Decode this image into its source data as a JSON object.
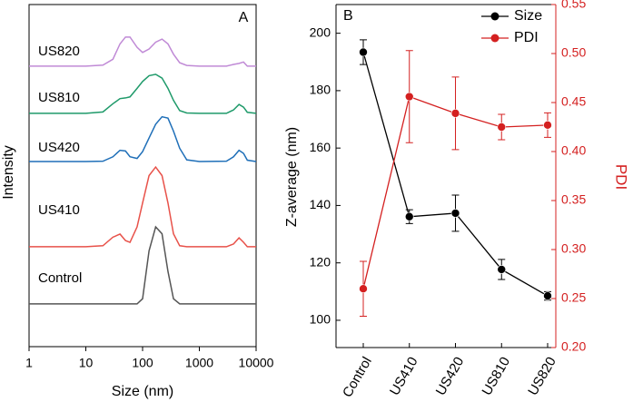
{
  "chart_data": [
    {
      "type": "line",
      "panel_label": "A",
      "x_label": "Size (nm)",
      "y_label": "Intensity",
      "x_log": true,
      "xlim": [
        1,
        10000
      ],
      "xticks": [
        1,
        10,
        100,
        1000,
        10000
      ],
      "ylim": [
        0,
        100
      ],
      "x": [
        1,
        10,
        20,
        30,
        40,
        50,
        60,
        80,
        100,
        130,
        170,
        220,
        280,
        350,
        450,
        600,
        1000,
        3000,
        4000,
        5000,
        6000,
        7000,
        10000
      ],
      "series": [
        {
          "name": "Control",
          "color": "#555555",
          "values": [
            12.5,
            12.5,
            12.5,
            12.5,
            12.5,
            12.5,
            12.5,
            12.5,
            14,
            28,
            35,
            33,
            22,
            14,
            12.5,
            12.5,
            12.5,
            12.5,
            12.5,
            12.5,
            12.5,
            12.5,
            12.5
          ]
        },
        {
          "name": "US410",
          "color": "#e8524a",
          "values": [
            29.2,
            29.2,
            29.5,
            32,
            32.9,
            31,
            30.5,
            35,
            42,
            50,
            52.5,
            50,
            42,
            33,
            29.5,
            29.2,
            29.2,
            29.2,
            30,
            31.8,
            30.5,
            29.2,
            29.2
          ]
        },
        {
          "name": "US420",
          "color": "#1f6fb8",
          "values": [
            54.1,
            54.1,
            54.2,
            55.5,
            57.4,
            57.2,
            55.5,
            55,
            57,
            61,
            65,
            67.2,
            66.8,
            63,
            58,
            54.6,
            54.1,
            54.2,
            55.5,
            57.4,
            56.5,
            54.5,
            54.1
          ]
        },
        {
          "name": "US810",
          "color": "#1f9a6a",
          "values": [
            68.2,
            68.2,
            68.6,
            71,
            72.5,
            72.7,
            73,
            75.5,
            77.5,
            79.2,
            79.6,
            78.5,
            75.5,
            72,
            69,
            68.3,
            68.2,
            68.2,
            69.2,
            70.8,
            70,
            68.5,
            68.2
          ]
        },
        {
          "name": "US820",
          "color": "#c08ad6",
          "values": [
            82,
            82,
            82.3,
            84,
            88.5,
            90.5,
            90.5,
            87.5,
            86,
            87,
            89,
            89.9,
            88.5,
            85.5,
            83,
            82.2,
            82,
            82,
            82.5,
            82.8,
            83.2,
            82,
            82
          ]
        }
      ]
    },
    {
      "type": "line",
      "panel_label": "B",
      "y_label": "Z-average (nm)",
      "y2_label": "PDI",
      "y2_color": "#d42020",
      "categories": [
        "Control",
        "US410",
        "US420",
        "US810",
        "US820"
      ],
      "ylim": [
        90.5,
        210
      ],
      "yticks": [
        100,
        120,
        140,
        160,
        180,
        200
      ],
      "y2lim": [
        0.2,
        0.55
      ],
      "y2ticks": [
        {
          "value": 0.2,
          "label": "0.20"
        },
        0.25,
        {
          "value": 0.3,
          "label": "0.30"
        },
        0.35,
        {
          "value": 0.4,
          "label": "0.40"
        },
        0.45,
        {
          "value": 0.5,
          "label": "0.50"
        },
        0.55
      ],
      "legend": "upper right",
      "series": [
        {
          "name": "Size",
          "color": "#000000",
          "values": [
            193.4,
            136.1,
            137.3,
            117.7,
            108.5
          ],
          "errors": [
            4.3,
            2.4,
            6.3,
            3.5,
            1.5
          ]
        },
        {
          "name": "PDI",
          "color": "#d42020",
          "axis": "y2",
          "values": [
            0.26,
            0.456,
            0.439,
            0.425,
            0.427
          ],
          "errors": [
            0.028,
            0.047,
            0.037,
            0.013,
            0.0125
          ]
        }
      ]
    }
  ]
}
